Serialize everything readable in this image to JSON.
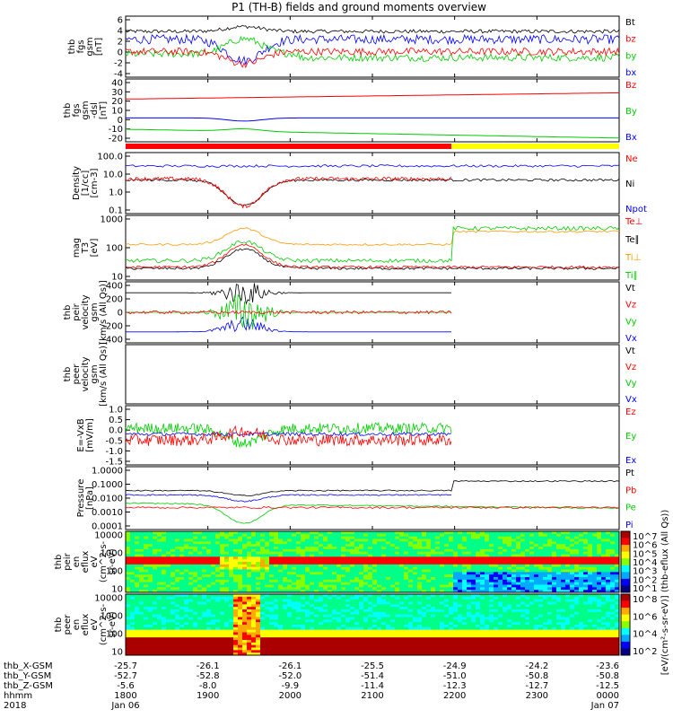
{
  "title": "P1 (TH-B) fields and ground moments overview",
  "chart_data": {
    "type": "line",
    "time_axis": {
      "start": "18:00",
      "end": "24:00",
      "tick_labels": [
        "1800",
        "1900",
        "2000",
        "2100",
        "2200",
        "2300",
        "0000"
      ],
      "date_labels": [
        "Jan 06",
        "Jan 07"
      ],
      "year": "2018"
    },
    "ephemeris": {
      "rows": [
        {
          "label": "thb_X-GSM",
          "values": [
            "-25.7",
            "-26.1",
            "-26.1",
            "-25.5",
            "-24.9",
            "-24.2",
            "-23.6"
          ]
        },
        {
          "label": "thb_Y-GSM",
          "values": [
            "-52.7",
            "-52.8",
            "-52.0",
            "-51.4",
            "-51.0",
            "-50.8",
            "-50.8"
          ]
        },
        {
          "label": "thb_Z-GSM",
          "values": [
            "-5.6",
            "-8.0",
            "-9.9",
            "-11.4",
            "-12.3",
            "-12.7",
            "-12.5"
          ]
        },
        {
          "label": "hhmm",
          "values": [
            "1800",
            "1900",
            "2000",
            "2100",
            "2200",
            "2300",
            "0000"
          ]
        },
        {
          "label": "2018",
          "values": [
            "Jan 06",
            "",
            "",
            "",
            "",
            "",
            "Jan 07"
          ]
        }
      ]
    },
    "panels": [
      {
        "id": "fgs",
        "ylabel": [
          "thb",
          "fgs",
          "gsm",
          "[nT]"
        ],
        "yticks": [
          "6",
          "4",
          "2",
          "0",
          "-2",
          "-4"
        ],
        "ylim": [
          -5,
          6
        ],
        "legend": [
          "Bt",
          "bz",
          "by",
          "bx"
        ],
        "legend_colors": [
          "#000000",
          "#ff0000",
          "#00cc00",
          "#0000ff"
        ]
      },
      {
        "id": "fgs_dsl",
        "ylabel": [
          "thb",
          "fgs",
          "gsm",
          "-dsl",
          "[nT]"
        ],
        "yticks": [
          "40",
          "30",
          "20",
          "10",
          "0",
          "-10",
          "-20"
        ],
        "ylim": [
          -25,
          40
        ],
        "legend": [
          "Bz",
          "By",
          "Bx"
        ],
        "legend_colors": [
          "#ff0000",
          "#00cc00",
          "#0000ff"
        ]
      },
      {
        "id": "density",
        "ylabel": [
          "Density",
          "[1/cc]",
          "[cm-3]"
        ],
        "yticks": [
          "100.0",
          "10.0",
          "1.0",
          "0.1"
        ],
        "ylim": [
          0.05,
          200
        ],
        "log": true,
        "legend": [
          "Ne",
          "Ni",
          "Npot"
        ],
        "legend_colors": [
          "#ff0000",
          "#000000",
          "#0000ff"
        ]
      },
      {
        "id": "temp",
        "ylabel": [
          "mag",
          "T3",
          "[eV]"
        ],
        "yticks": [
          "1000",
          "100",
          "10"
        ],
        "ylim": [
          5,
          1500
        ],
        "log": true,
        "legend": [
          "Te⊥",
          "Te∥",
          "Ti⊥",
          "Ti∥"
        ],
        "legend_colors": [
          "#ff0000",
          "#000000",
          "#ff9900",
          "#00cc00"
        ]
      },
      {
        "id": "peir_vel",
        "ylabel": [
          "thb",
          "peir",
          "velocity",
          "gsm",
          "[km/s (All Qs)]"
        ],
        "yticks": [
          "400",
          "200",
          "0",
          "-200",
          "-400"
        ],
        "ylim": [
          -400,
          400
        ],
        "legend": [
          "Vt",
          "Vz",
          "Vy",
          "Vx"
        ],
        "legend_colors": [
          "#000000",
          "#ff0000",
          "#00cc00",
          "#0000ff"
        ]
      },
      {
        "id": "peer_vel",
        "ylabel": [
          "thb",
          "peer",
          "velocity",
          "gsm",
          "[km/s (All Qs)]"
        ],
        "yticks": [],
        "legend": [
          "Vt",
          "Vz",
          "Vy",
          "Vx"
        ],
        "legend_colors": [
          "#000000",
          "#ff0000",
          "#00cc00",
          "#0000ff"
        ]
      },
      {
        "id": "efield",
        "ylabel": [
          "E=-VxB",
          "[mV/m]"
        ],
        "yticks": [
          "1.0",
          "0.5",
          "0.0",
          "-0.5",
          "-1.0",
          "-1.5"
        ],
        "ylim": [
          -1.6,
          1.2
        ],
        "legend": [
          "Ez",
          "Ey",
          "Ex"
        ],
        "legend_colors": [
          "#ff0000",
          "#00cc00",
          "#0000ff"
        ]
      },
      {
        "id": "pressure",
        "ylabel": [
          "Pressure",
          "[nPa]"
        ],
        "yticks": [
          "1.0000",
          "0.1000",
          "0.0100",
          "0.0010",
          "0.0001"
        ],
        "ylim": [
          0.0001,
          1
        ],
        "log": true,
        "legend": [
          "Pt",
          "Pb",
          "Pe",
          "Pi"
        ],
        "legend_colors": [
          "#000000",
          "#ff0000",
          "#00cc00",
          "#0000ff"
        ]
      },
      {
        "id": "peir_en",
        "ylabel": [
          "thb",
          "peir",
          "en",
          "eflux",
          "eV",
          "(cm^2-s-",
          "sr-eV)"
        ],
        "yticks": [
          "10000",
          "1000",
          "100",
          "10"
        ],
        "type": "heatmap",
        "colorbar_ticks": [
          "10^7",
          "10^6",
          "10^5",
          "10^4",
          "10^3",
          "10^2",
          "10^1"
        ]
      },
      {
        "id": "peer_en",
        "ylabel": [
          "thb",
          "peer",
          "en",
          "eflux",
          "eV",
          "(cm^2-s-",
          "sr-eV)"
        ],
        "yticks": [
          "10000",
          "1000",
          "100",
          "10"
        ],
        "type": "heatmap",
        "colorbar_ticks": [
          "10^8",
          "10^6",
          "10^4",
          "10^2"
        ]
      }
    ],
    "colorbar_label": "[eV/(cm²-s-sr-eV)] (thb-eflux (All Qs))",
    "quality_bar": {
      "red_end_time": "22:00",
      "segments": [
        "red",
        "yellow"
      ]
    },
    "colors": {
      "bx": "#0000ff",
      "by": "#00cc00",
      "bz": "#ff0000",
      "bt": "#000000"
    }
  }
}
